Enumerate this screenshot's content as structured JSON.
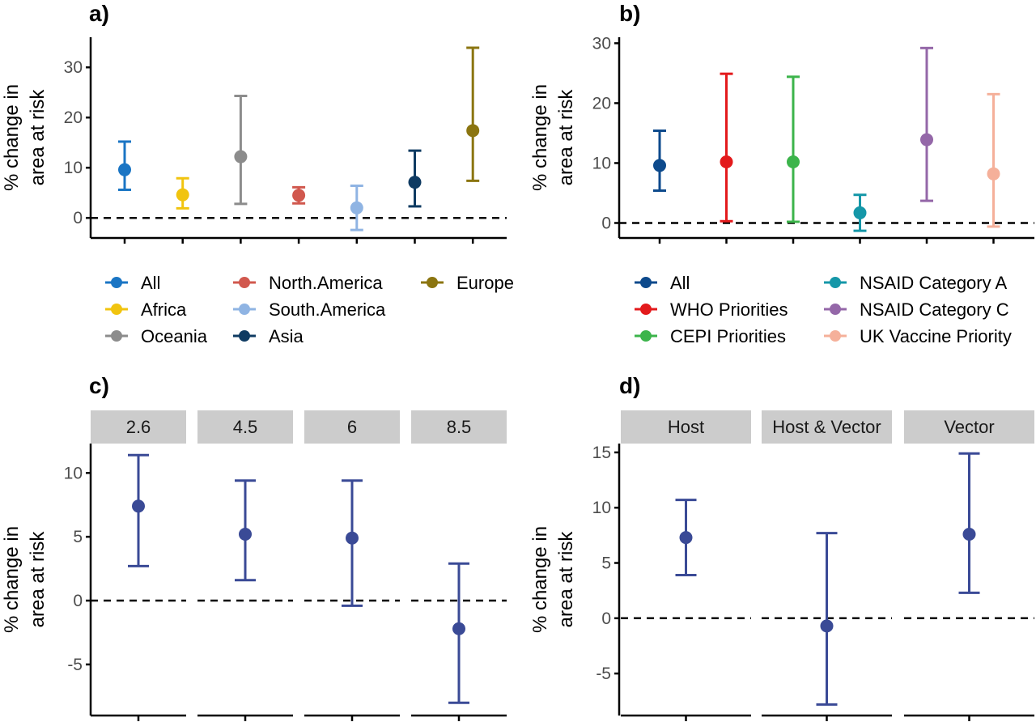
{
  "chart_data": [
    {
      "panel": "a)",
      "type": "scatter",
      "ylabel": [
        "% change in",
        "area at risk"
      ],
      "yticks": [
        0,
        10,
        20,
        30
      ],
      "ylim": [
        -4,
        36
      ],
      "reference_line": 0,
      "legend_placement": "bottom",
      "series": [
        {
          "name": "All",
          "color": "#1a75c4",
          "y": 9.6,
          "lo": 5.6,
          "hi": 15.2
        },
        {
          "name": "Africa",
          "color": "#f1c40f",
          "y": 4.6,
          "lo": 1.9,
          "hi": 7.9
        },
        {
          "name": "Oceania",
          "color": "#8c8c8c",
          "y": 12.2,
          "lo": 2.8,
          "hi": 24.3
        },
        {
          "name": "North.America",
          "color": "#d1584e",
          "y": 4.5,
          "lo": 2.9,
          "hi": 6.1
        },
        {
          "name": "South.America",
          "color": "#8fb4e3",
          "y": 2.0,
          "lo": -2.4,
          "hi": 6.4
        },
        {
          "name": "Asia",
          "color": "#0f3b62",
          "y": 7.1,
          "lo": 2.3,
          "hi": 13.4
        },
        {
          "name": "Europe",
          "color": "#8b7510",
          "y": 17.4,
          "lo": 7.4,
          "hi": 33.9
        }
      ],
      "legend_order": [
        "All",
        "Africa",
        "Oceania",
        "North.America",
        "South.America",
        "Asia",
        "Europe"
      ]
    },
    {
      "panel": "b)",
      "type": "scatter",
      "ylabel": [
        "% change in",
        "area at risk"
      ],
      "yticks": [
        0,
        10,
        20,
        30
      ],
      "ylim": [
        -2.5,
        31
      ],
      "reference_line": 0,
      "legend_placement": "bottom",
      "series": [
        {
          "name": "All",
          "color": "#0d4a8c",
          "y": 9.6,
          "lo": 5.4,
          "hi": 15.4
        },
        {
          "name": "WHO Priorities",
          "color": "#e31a1c",
          "y": 10.2,
          "lo": 0.3,
          "hi": 24.9
        },
        {
          "name": "CEPI Priorities",
          "color": "#3cb44b",
          "y": 10.2,
          "lo": 0.2,
          "hi": 24.4
        },
        {
          "name": "NSAID Category A",
          "color": "#1597a8",
          "y": 1.7,
          "lo": -1.3,
          "hi": 4.7
        },
        {
          "name": "NSAID Category C",
          "color": "#9467a8",
          "y": 13.9,
          "lo": 3.7,
          "hi": 29.2
        },
        {
          "name": "UK Vaccine Priority",
          "color": "#f5b09a",
          "y": 8.2,
          "lo": -0.6,
          "hi": 21.5
        }
      ],
      "legend_order": [
        "All",
        "WHO Priorities",
        "CEPI Priorities",
        "NSAID Category A",
        "NSAID Category C",
        "UK Vaccine Priority"
      ]
    },
    {
      "panel": "c)",
      "type": "scatter",
      "ylabel": [
        "% change in",
        "area at risk"
      ],
      "yticks": [
        -5,
        0,
        5,
        10
      ],
      "ylim": [
        -9,
        12.3
      ],
      "reference_line": 0,
      "color": "#3a4a96",
      "facets": [
        {
          "label": "2.6",
          "y": 7.4,
          "lo": 2.7,
          "hi": 11.4
        },
        {
          "label": "4.5",
          "y": 5.2,
          "lo": 1.6,
          "hi": 9.4
        },
        {
          "label": "6",
          "y": 4.9,
          "lo": -0.4,
          "hi": 9.4
        },
        {
          "label": "8.5",
          "y": -2.2,
          "lo": -8.0,
          "hi": 2.9
        }
      ]
    },
    {
      "panel": "d)",
      "type": "scatter",
      "ylabel": [
        "% change in",
        "area at risk"
      ],
      "yticks": [
        -5,
        0,
        5,
        10,
        15
      ],
      "ylim": [
        -8.8,
        15.8
      ],
      "reference_line": 0,
      "color": "#3a4a96",
      "facets": [
        {
          "label": "Host",
          "y": 7.3,
          "lo": 3.9,
          "hi": 10.7
        },
        {
          "label": "Host & Vector",
          "y": -0.7,
          "lo": -7.8,
          "hi": 7.7
        },
        {
          "label": "Vector",
          "y": 7.6,
          "lo": 2.3,
          "hi": 14.9
        }
      ]
    }
  ]
}
